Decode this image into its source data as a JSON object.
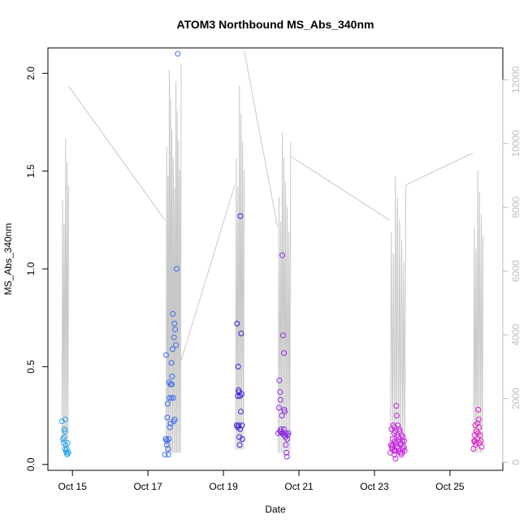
{
  "chart_data": {
    "type": "scatter",
    "title": "ATOM3 Northbound MS_Abs_340nm",
    "xlabel": "Date",
    "ylabel": "MS_Abs_340nm",
    "x_ticks": [
      {
        "day": 15,
        "label": "Oct 15"
      },
      {
        "day": 17,
        "label": "Oct 17"
      },
      {
        "day": 19,
        "label": "Oct 19"
      },
      {
        "day": 21,
        "label": "Oct 21"
      },
      {
        "day": 23,
        "label": "Oct 23"
      },
      {
        "day": 25,
        "label": "Oct 25"
      }
    ],
    "xlim": [
      14.35,
      26.4
    ],
    "ylim": [
      -0.03,
      2.13
    ],
    "y_ticks": [
      0.0,
      0.5,
      1.0,
      1.5,
      2.0
    ],
    "y_tick_labels": [
      "0.0",
      "0.5",
      "1.0",
      "1.5",
      "2.0"
    ],
    "y2_lim": [
      -250,
      13000
    ],
    "y2_ticks": [
      0,
      2000,
      4000,
      6000,
      8000,
      10000,
      12000
    ],
    "y2_tick_labels": [
      "0",
      "2000",
      "4000",
      "6000",
      "8000",
      "10000",
      "12000"
    ],
    "grid": false,
    "secondary_series": {
      "color": "#c8c8c8",
      "legs": [
        {
          "start": 14.72,
          "end": 14.9,
          "n": 10,
          "min": 600,
          "max": 10300
        },
        {
          "start": 17.48,
          "end": 17.88,
          "n": 24,
          "min": 300,
          "max": 12500
        },
        {
          "start": 19.32,
          "end": 19.55,
          "n": 12,
          "min": 400,
          "max": 12000
        },
        {
          "start": 20.45,
          "end": 20.78,
          "n": 16,
          "min": 300,
          "max": 10500
        },
        {
          "start": 23.42,
          "end": 23.83,
          "n": 16,
          "min": 300,
          "max": 9100
        },
        {
          "start": 25.62,
          "end": 25.88,
          "n": 12,
          "min": 300,
          "max": 9300
        }
      ],
      "transits": [
        {
          "x": [
            14.9,
            17.45
          ],
          "y": [
            11800,
            7600
          ]
        },
        {
          "x": [
            17.88,
            19.3
          ],
          "y": [
            3200,
            8700
          ]
        },
        {
          "x": [
            19.55,
            20.43
          ],
          "y": [
            12900,
            7400
          ]
        },
        {
          "x": [
            20.78,
            23.4
          ],
          "y": [
            9600,
            7600
          ]
        },
        {
          "x": [
            23.83,
            25.6
          ],
          "y": [
            8700,
            9700
          ]
        }
      ]
    },
    "series": [
      {
        "color": "#29a3e0",
        "points": [
          [
            14.72,
            0.22
          ],
          [
            14.75,
            0.13
          ],
          [
            14.77,
            0.11
          ],
          [
            14.79,
            0.18
          ],
          [
            14.8,
            0.17
          ],
          [
            14.81,
            0.23
          ],
          [
            14.82,
            0.1
          ],
          [
            14.83,
            0.07
          ],
          [
            14.84,
            0.06
          ],
          [
            14.85,
            0.08
          ],
          [
            14.86,
            0.05
          ],
          [
            14.87,
            0.11
          ],
          [
            14.88,
            0.06
          ],
          [
            14.89,
            0.06
          ],
          [
            14.78,
            0.14
          ],
          [
            14.8,
            0.08
          ]
        ]
      },
      {
        "color": "#3d6cf0",
        "points": [
          [
            17.45,
            0.05
          ],
          [
            17.47,
            0.13
          ],
          [
            17.48,
            0.56
          ],
          [
            17.5,
            0.12
          ],
          [
            17.51,
            0.24
          ],
          [
            17.52,
            0.31
          ],
          [
            17.53,
            0.08
          ],
          [
            17.55,
            0.13
          ],
          [
            17.56,
            0.42
          ],
          [
            17.57,
            0.34
          ],
          [
            17.58,
            0.19
          ],
          [
            17.6,
            0.41
          ],
          [
            17.62,
            0.52
          ],
          [
            17.63,
            0.41
          ],
          [
            17.64,
            0.45
          ],
          [
            17.66,
            0.77
          ],
          [
            17.67,
            0.34
          ],
          [
            17.68,
            0.22
          ],
          [
            17.69,
            0.65
          ],
          [
            17.7,
            0.72
          ],
          [
            17.71,
            0.23
          ],
          [
            17.72,
            0.69
          ],
          [
            17.74,
            0.61
          ],
          [
            17.76,
            1.0
          ],
          [
            17.79,
            2.1
          ],
          [
            17.48,
            0.13
          ],
          [
            17.54,
            0.05
          ],
          [
            17.6,
            0.21
          ],
          [
            17.62,
            0.34
          ],
          [
            17.5,
            0.1
          ],
          [
            17.65,
            0.59
          ]
        ]
      },
      {
        "color": "#3420d8",
        "points": [
          [
            19.35,
            0.2
          ],
          [
            19.36,
            0.72
          ],
          [
            19.38,
            0.35
          ],
          [
            19.39,
            0.5
          ],
          [
            19.4,
            0.38
          ],
          [
            19.41,
            0.37
          ],
          [
            19.42,
            0.14
          ],
          [
            19.43,
            0.1
          ],
          [
            19.44,
            0.18
          ],
          [
            19.45,
            1.27
          ],
          [
            19.46,
            0.27
          ],
          [
            19.47,
            0.67
          ],
          [
            19.48,
            0.36
          ],
          [
            19.49,
            0.2
          ],
          [
            19.5,
            0.13
          ],
          [
            19.38,
            0.19
          ],
          [
            19.44,
            0.35
          ],
          [
            19.4,
            0.2
          ]
        ]
      },
      {
        "color": "#8f2ce0",
        "points": [
          [
            20.45,
            0.16
          ],
          [
            20.47,
            0.29
          ],
          [
            20.48,
            0.43
          ],
          [
            20.5,
            0.37
          ],
          [
            20.51,
            0.33
          ],
          [
            20.52,
            0.17
          ],
          [
            20.54,
            0.16
          ],
          [
            20.55,
            0.25
          ],
          [
            20.56,
            1.07
          ],
          [
            20.58,
            0.66
          ],
          [
            20.6,
            0.57
          ],
          [
            20.61,
            0.28
          ],
          [
            20.62,
            0.27
          ],
          [
            20.63,
            0.15
          ],
          [
            20.65,
            0.1
          ],
          [
            20.67,
            0.06
          ],
          [
            20.68,
            0.04
          ],
          [
            20.7,
            0.15
          ],
          [
            20.72,
            0.16
          ],
          [
            20.5,
            0.17
          ],
          [
            20.53,
            0.18
          ],
          [
            20.57,
            0.16
          ],
          [
            20.6,
            0.18
          ],
          [
            20.64,
            0.14
          ],
          [
            20.66,
            0.16
          ],
          [
            20.69,
            0.13
          ],
          [
            20.58,
            0.16
          ],
          [
            20.61,
            0.15
          ]
        ]
      },
      {
        "color": "#c520e0",
        "points": [
          [
            23.42,
            0.06
          ],
          [
            23.44,
            0.1
          ],
          [
            23.45,
            0.18
          ],
          [
            23.46,
            0.09
          ],
          [
            23.48,
            0.13
          ],
          [
            23.5,
            0.2
          ],
          [
            23.51,
            0.07
          ],
          [
            23.52,
            0.16
          ],
          [
            23.53,
            0.05
          ],
          [
            23.54,
            0.12
          ],
          [
            23.55,
            0.17
          ],
          [
            23.56,
            0.03
          ],
          [
            23.58,
            0.3
          ],
          [
            23.59,
            0.25
          ],
          [
            23.6,
            0.15
          ],
          [
            23.62,
            0.2
          ],
          [
            23.63,
            0.08
          ],
          [
            23.64,
            0.14
          ],
          [
            23.66,
            0.18
          ],
          [
            23.68,
            0.06
          ],
          [
            23.7,
            0.11
          ],
          [
            23.72,
            0.15
          ],
          [
            23.74,
            0.12
          ],
          [
            23.76,
            0.08
          ],
          [
            23.78,
            0.09
          ],
          [
            23.8,
            0.07
          ],
          [
            23.47,
            0.08
          ],
          [
            23.57,
            0.11
          ],
          [
            23.61,
            0.09
          ],
          [
            23.65,
            0.07
          ],
          [
            23.69,
            0.1
          ],
          [
            23.73,
            0.06
          ],
          [
            23.49,
            0.1
          ],
          [
            23.53,
            0.19
          ],
          [
            23.67,
            0.17
          ],
          [
            23.75,
            0.14
          ],
          [
            23.79,
            0.12
          ],
          [
            23.55,
            0.07
          ],
          [
            23.63,
            0.12
          ],
          [
            23.71,
            0.05
          ]
        ]
      },
      {
        "color": "#e020c8",
        "points": [
          [
            25.62,
            0.08
          ],
          [
            25.64,
            0.12
          ],
          [
            25.65,
            0.15
          ],
          [
            25.67,
            0.2
          ],
          [
            25.68,
            0.1
          ],
          [
            25.7,
            0.17
          ],
          [
            25.72,
            0.13
          ],
          [
            25.73,
            0.21
          ],
          [
            25.75,
            0.28
          ],
          [
            25.76,
            0.23
          ],
          [
            25.77,
            0.19
          ],
          [
            25.78,
            0.11
          ],
          [
            25.8,
            0.15
          ],
          [
            25.82,
            0.12
          ],
          [
            25.84,
            0.09
          ],
          [
            25.66,
            0.12
          ],
          [
            25.7,
            0.11
          ],
          [
            25.74,
            0.16
          ]
        ]
      }
    ]
  }
}
